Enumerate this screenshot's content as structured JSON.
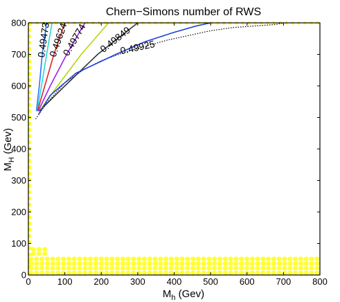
{
  "chart_data": {
    "type": "line",
    "title": "Chern−Simons number of RWS",
    "xlabel": {
      "main": "M",
      "sub": "h",
      "unit": " (Gev)"
    },
    "ylabel": {
      "main": "M",
      "sub": "H",
      "unit": " (Gev)"
    },
    "xlim": [
      0,
      800
    ],
    "ylim": [
      0,
      800
    ],
    "xticks": [
      "0",
      "100",
      "200",
      "300",
      "400",
      "500",
      "600",
      "700",
      "800"
    ],
    "yticks": [
      "0",
      "100",
      "200",
      "300",
      "400",
      "500",
      "600",
      "700",
      "800"
    ],
    "grid": false,
    "legend": "none",
    "series": [
      {
        "label": "0.49473",
        "color": "#1f77ff",
        "x": [
          22,
          30,
          38,
          50
        ],
        "y": [
          520,
          600,
          700,
          800
        ]
      },
      {
        "label": "",
        "color": "#29d6d6",
        "x": [
          24,
          36,
          50,
          65
        ],
        "y": [
          520,
          600,
          700,
          800
        ]
      },
      {
        "label": "0.49624",
        "color": "#e0242a",
        "x": [
          25,
          45,
          70,
          100
        ],
        "y": [
          520,
          600,
          700,
          800
        ]
      },
      {
        "label": "0.49774",
        "color": "#a020f0",
        "x": [
          27,
          60,
          105,
          155
        ],
        "y": [
          520,
          600,
          700,
          800
        ]
      },
      {
        "label": "",
        "color": "#b5d60e",
        "x": [
          30,
          80,
          145,
          220
        ],
        "y": [
          520,
          600,
          700,
          800
        ]
      },
      {
        "label": "0.49849",
        "color": "#333333",
        "x": [
          30,
          100,
          190,
          300
        ],
        "y": [
          520,
          600,
          700,
          800
        ]
      },
      {
        "label": "0.49925",
        "color": "#1e3fd8",
        "x": [
          28,
          60,
          130,
          240,
          320,
          400,
          460,
          500
        ],
        "y": [
          510,
          570,
          640,
          700,
          740,
          770,
          790,
          800
        ]
      }
    ],
    "boundary": {
      "style": "dotted",
      "color": "#000000",
      "x": [
        20,
        50,
        100,
        150,
        200,
        260,
        320,
        380,
        440,
        500,
        560,
        620,
        680,
        700
      ],
      "y": [
        495,
        545,
        610,
        650,
        680,
        705,
        725,
        745,
        760,
        775,
        785,
        790,
        795,
        800
      ]
    },
    "highlight_region": {
      "color": "#ffff33",
      "bottom_band_y": [
        0,
        60
      ],
      "bottom_band_x": [
        0,
        800
      ],
      "left_strip_x": [
        0,
        5
      ],
      "left_strip_y": [
        0,
        800
      ],
      "small_block_x": [
        5,
        55
      ],
      "small_block_y": [
        60,
        90
      ]
    }
  }
}
